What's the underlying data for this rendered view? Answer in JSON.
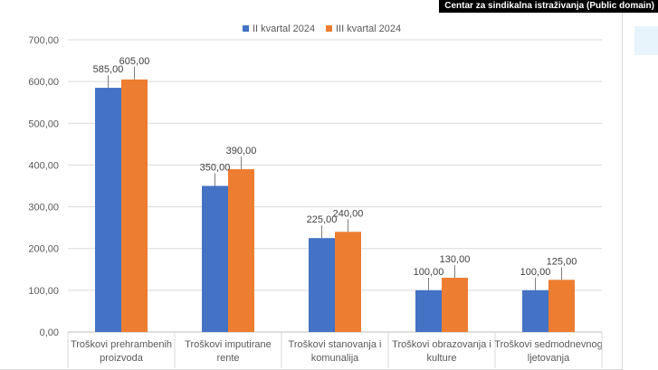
{
  "credit": "Centar za sindikalna istraživanja (Public domain)",
  "chart_data": {
    "type": "bar",
    "title": "",
    "xlabel": "",
    "ylabel": "",
    "ylim": [
      0,
      700
    ],
    "ytick_step": 100,
    "ytick_labels": [
      "0,00",
      "100,00",
      "200,00",
      "300,00",
      "400,00",
      "500,00",
      "600,00",
      "700,00"
    ],
    "grid": true,
    "legend_position": "top-center",
    "categories": [
      [
        "Troškovi prehrambenih",
        "proizvoda"
      ],
      [
        "Troškovi imputirane",
        "rente"
      ],
      [
        "Troškovi stanovanja i",
        "komunalija"
      ],
      [
        "Troškovi obrazovanja i",
        "kulture"
      ],
      [
        "Troškovi sedmodnevnog",
        "ljetovanja"
      ]
    ],
    "series": [
      {
        "name": "II kvartal 2024",
        "color": "#4472c4",
        "values": [
          585,
          350,
          225,
          100,
          100
        ],
        "labels": [
          "585,00",
          "350,00",
          "225,00",
          "100,00",
          "100,00"
        ]
      },
      {
        "name": "III kvartal 2024",
        "color": "#ed7d31",
        "values": [
          605,
          390,
          240,
          130,
          125
        ],
        "labels": [
          "605,00",
          "390,00",
          "240,00",
          "130,00",
          "125,00"
        ]
      }
    ]
  }
}
